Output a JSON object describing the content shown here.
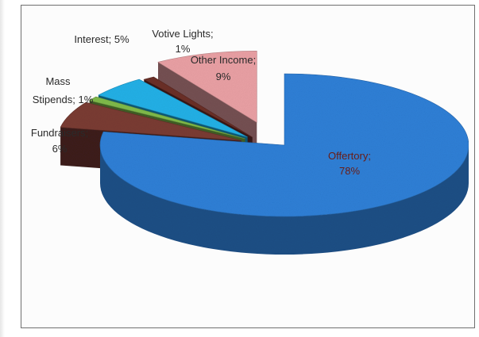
{
  "chart_data": {
    "type": "pie",
    "title": "",
    "slices": [
      {
        "label": "Offertory",
        "value": 78,
        "display": "78%",
        "color": "#2e7fd6"
      },
      {
        "label": "Fundraisers",
        "value": 6,
        "display": "6%",
        "color": "#7a3b33"
      },
      {
        "label": "Mass Stipends",
        "value": 1,
        "display": "1%",
        "color": "#7fba4a"
      },
      {
        "label": "Interest",
        "value": 5,
        "display": "5%",
        "color": "#22b0e6"
      },
      {
        "label": "Votive Lights",
        "value": 1,
        "display": "1%",
        "color": "#6b3028"
      },
      {
        "label": "Other Income",
        "value": 9,
        "display": "9%",
        "color": "#e9a0a4"
      }
    ],
    "labels": {
      "offertory_1": "Offertory;",
      "offertory_2": "78%",
      "fundraisers_1": "Fundraisers;",
      "fundraisers_2": "6%",
      "mass_1": "Mass",
      "mass_2": "Stipends; 1%",
      "interest": "Interest; 5%",
      "votive_1": "Votive Lights;",
      "votive_2": "1%",
      "other_1": "Other Income;",
      "other_2": "9%"
    },
    "legend": "none",
    "style": "3d-exploded"
  }
}
